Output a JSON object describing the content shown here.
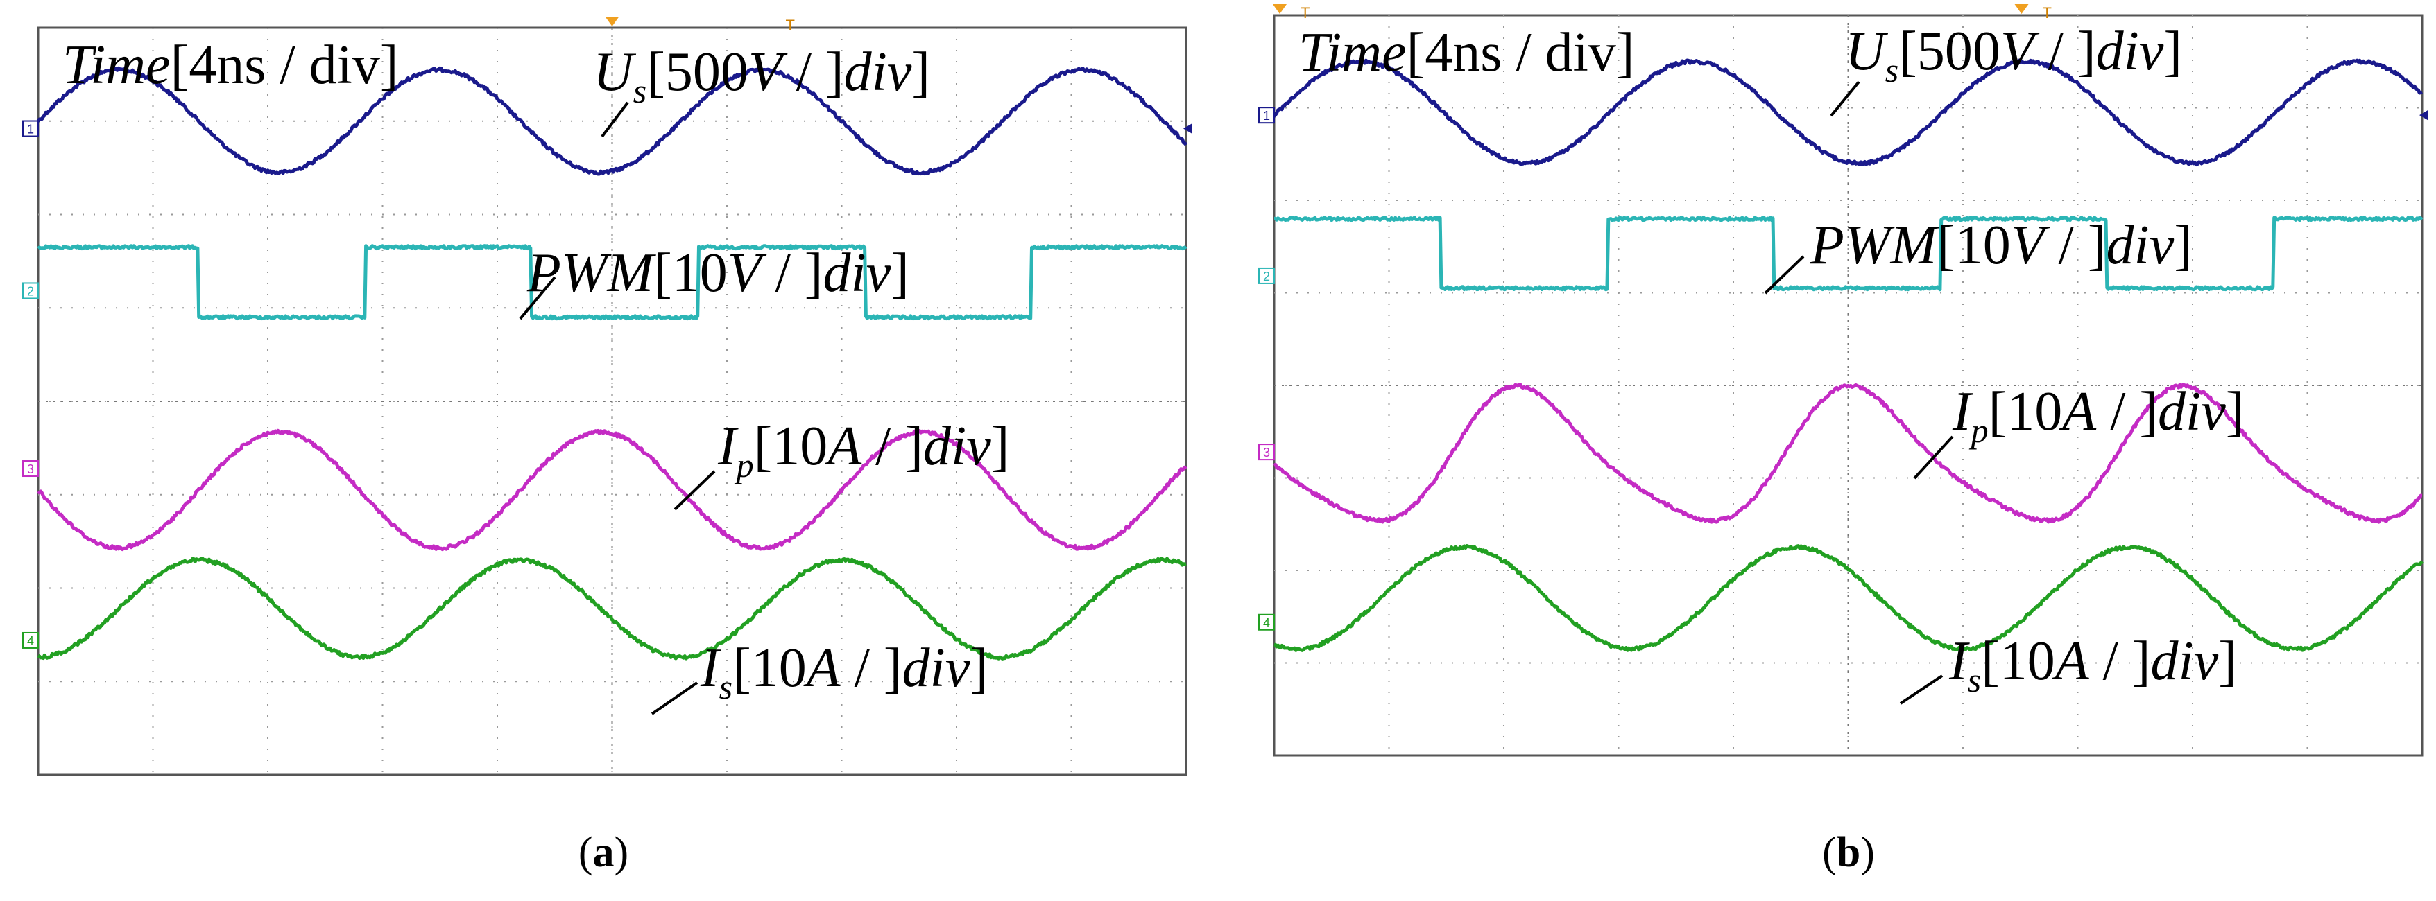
{
  "figure": {
    "panels": [
      {
        "id": "a",
        "caption_open": "(",
        "caption_letter": "a",
        "caption_close": ")",
        "time_label": {
          "var": "Time",
          "unit": "[4ns / div]"
        },
        "markers": [
          "T"
        ],
        "channels": [
          {
            "num": "1",
            "color": "#1a1a8c",
            "label_main": "U",
            "label_sub": "s",
            "label_scale": "[500",
            "label_unit": "V",
            "label_tail": " / div]"
          },
          {
            "num": "2",
            "color": "#2bb5b5",
            "label_main": "PWM",
            "label_sub": "",
            "label_scale": "[10",
            "label_unit": "V",
            "label_tail": " / div]"
          },
          {
            "num": "3",
            "color": "#c42bc4",
            "label_main": "I",
            "label_sub": "p",
            "label_scale": "[10",
            "label_unit": "A",
            "label_tail": " / div]"
          },
          {
            "num": "4",
            "color": "#22a022",
            "label_main": "I",
            "label_sub": "s",
            "label_scale": "[10",
            "label_unit": "A",
            "label_tail": " / div]"
          }
        ]
      },
      {
        "id": "b",
        "caption_open": "(",
        "caption_letter": "b",
        "caption_close": ")",
        "time_label": {
          "var": "Time",
          "unit": "[4ns / div]"
        },
        "markers": [
          "T",
          "T"
        ],
        "channels": [
          {
            "num": "1",
            "color": "#1a1a8c",
            "label_main": "U",
            "label_sub": "s",
            "label_scale": "[500",
            "label_unit": "V",
            "label_tail": " / div]"
          },
          {
            "num": "2",
            "color": "#2bb5b5",
            "label_main": "PWM",
            "label_sub": "",
            "label_scale": "[10",
            "label_unit": "V",
            "label_tail": " / div]"
          },
          {
            "num": "3",
            "color": "#c42bc4",
            "label_main": "I",
            "label_sub": "p",
            "label_scale": "[10",
            "label_unit": "A",
            "label_tail": " / div]"
          },
          {
            "num": "4",
            "color": "#22a022",
            "label_main": "I",
            "label_sub": "s",
            "label_scale": "[10",
            "label_unit": "A",
            "label_tail": " / div]"
          }
        ]
      }
    ]
  },
  "chart_data": [
    {
      "type": "line",
      "title": "(a)",
      "xlabel": "Time[4ns / div]",
      "x_divisions": 10,
      "y_divisions": 8,
      "grid": "dotted",
      "series": [
        {
          "name": "Us [500V / div]",
          "shape": "sine",
          "period_div": 2.8,
          "phase_div": 0.7,
          "center_div": 1.0,
          "amplitude_div": 0.55
        },
        {
          "name": "PWM [10V / div]",
          "shape": "square",
          "period_div": 2.9,
          "high_div": 1.45,
          "start_state": "high",
          "first_edge_div": 1.4,
          "high_level_div": 2.35,
          "low_level_div": 3.1
        },
        {
          "name": "Ip [10A / div]",
          "shape": "sine",
          "period_div": 2.8,
          "peak_div": 2.1,
          "center_div": 4.95,
          "amplitude_div": 0.62
        },
        {
          "name": "Is [10A / div]",
          "shape": "sine",
          "period_div": 2.8,
          "peak_div": 1.4,
          "center_div": 6.22,
          "amplitude_div": 0.52
        }
      ]
    },
    {
      "type": "line",
      "title": "(b)",
      "xlabel": "Time[4ns / div]",
      "x_divisions": 10,
      "y_divisions": 8,
      "grid": "dotted",
      "series": [
        {
          "name": "Us [500V / div]",
          "shape": "sine",
          "period_div": 2.9,
          "phase_div": 0.75,
          "center_div": 1.05,
          "amplitude_div": 0.55
        },
        {
          "name": "PWM [10V / div]",
          "shape": "square",
          "period_div": 2.9,
          "high_div": 1.45,
          "start_state": "high",
          "first_edge_div": 1.45,
          "high_level_div": 2.2,
          "low_level_div": 2.95
        },
        {
          "name": "Ip [10A / div]",
          "shape": "distorted-sine",
          "period_div": 2.9,
          "peak_div": 2.2,
          "center_div": 4.8,
          "amplitude_div": 0.7
        },
        {
          "name": "Is [10A / div]",
          "shape": "sine",
          "period_div": 2.9,
          "peak_div": 1.65,
          "center_div": 6.3,
          "amplitude_div": 0.55
        }
      ]
    }
  ]
}
